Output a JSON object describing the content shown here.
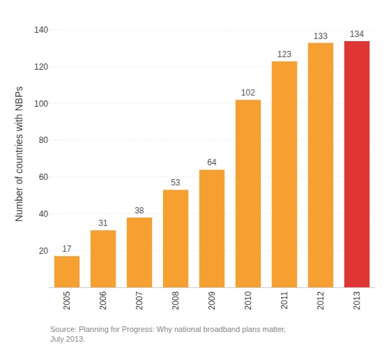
{
  "chart_data": {
    "type": "bar",
    "categories": [
      "2005",
      "2006",
      "2007",
      "2008",
      "2009",
      "2010",
      "2011",
      "2012",
      "2013"
    ],
    "values": [
      17,
      31,
      38,
      53,
      64,
      102,
      123,
      133,
      134
    ],
    "colors": [
      "#F5A030",
      "#F5A030",
      "#F5A030",
      "#F5A030",
      "#F5A030",
      "#F5A030",
      "#F5A030",
      "#F5A030",
      "#E03535"
    ],
    "ylabel": "Number of countries with NBPs",
    "ylim": [
      0,
      145
    ],
    "yticks": [
      20,
      40,
      60,
      80,
      100,
      120,
      140
    ],
    "grid": true,
    "data_labels": true,
    "annotations": [
      "Source: Planning for Progress: Why national broadband plans matter,\nJuly 2013."
    ]
  }
}
